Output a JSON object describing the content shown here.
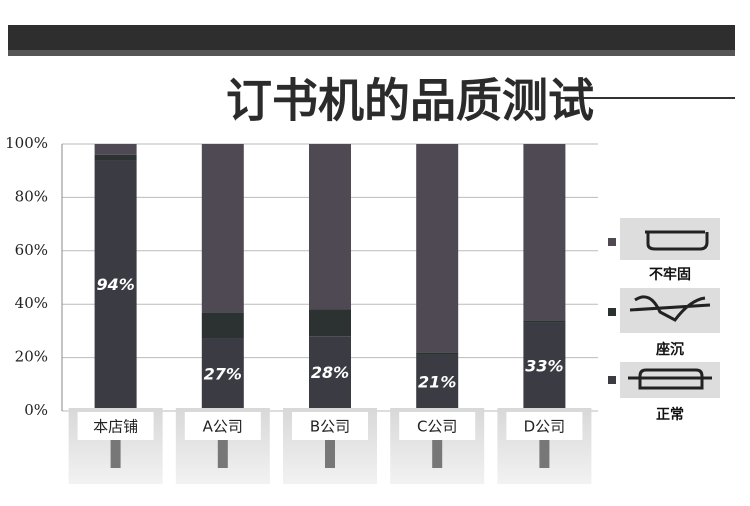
{
  "chart_data": {
    "type": "stacked_bar",
    "title": "订书机的品质测试",
    "categories": [
      "本店铺",
      "A公司",
      "B公司",
      "C公司",
      "D公司"
    ],
    "series": [
      {
        "name": "正常",
        "color": "#3b3b43",
        "values": [
          94,
          27,
          28,
          21,
          33
        ],
        "value_labels": [
          "94%",
          "27%",
          "28%",
          "21%",
          "33%"
        ]
      },
      {
        "name": "座沉",
        "color": "#2c3132",
        "values": [
          2,
          10,
          10,
          1,
          1
        ]
      },
      {
        "name": "不牢固",
        "color": "#4e4953",
        "values": [
          4,
          63,
          62,
          78,
          66
        ]
      }
    ],
    "ylim": [
      0,
      100
    ],
    "yticks": [
      {
        "value": 0,
        "label": "0%"
      },
      {
        "value": 20,
        "label": "20%"
      },
      {
        "value": 40,
        "label": "40%"
      },
      {
        "value": 60,
        "label": "60%"
      },
      {
        "value": 80,
        "label": "80%"
      },
      {
        "value": 100,
        "label": "100%"
      }
    ],
    "grid": true
  }
}
